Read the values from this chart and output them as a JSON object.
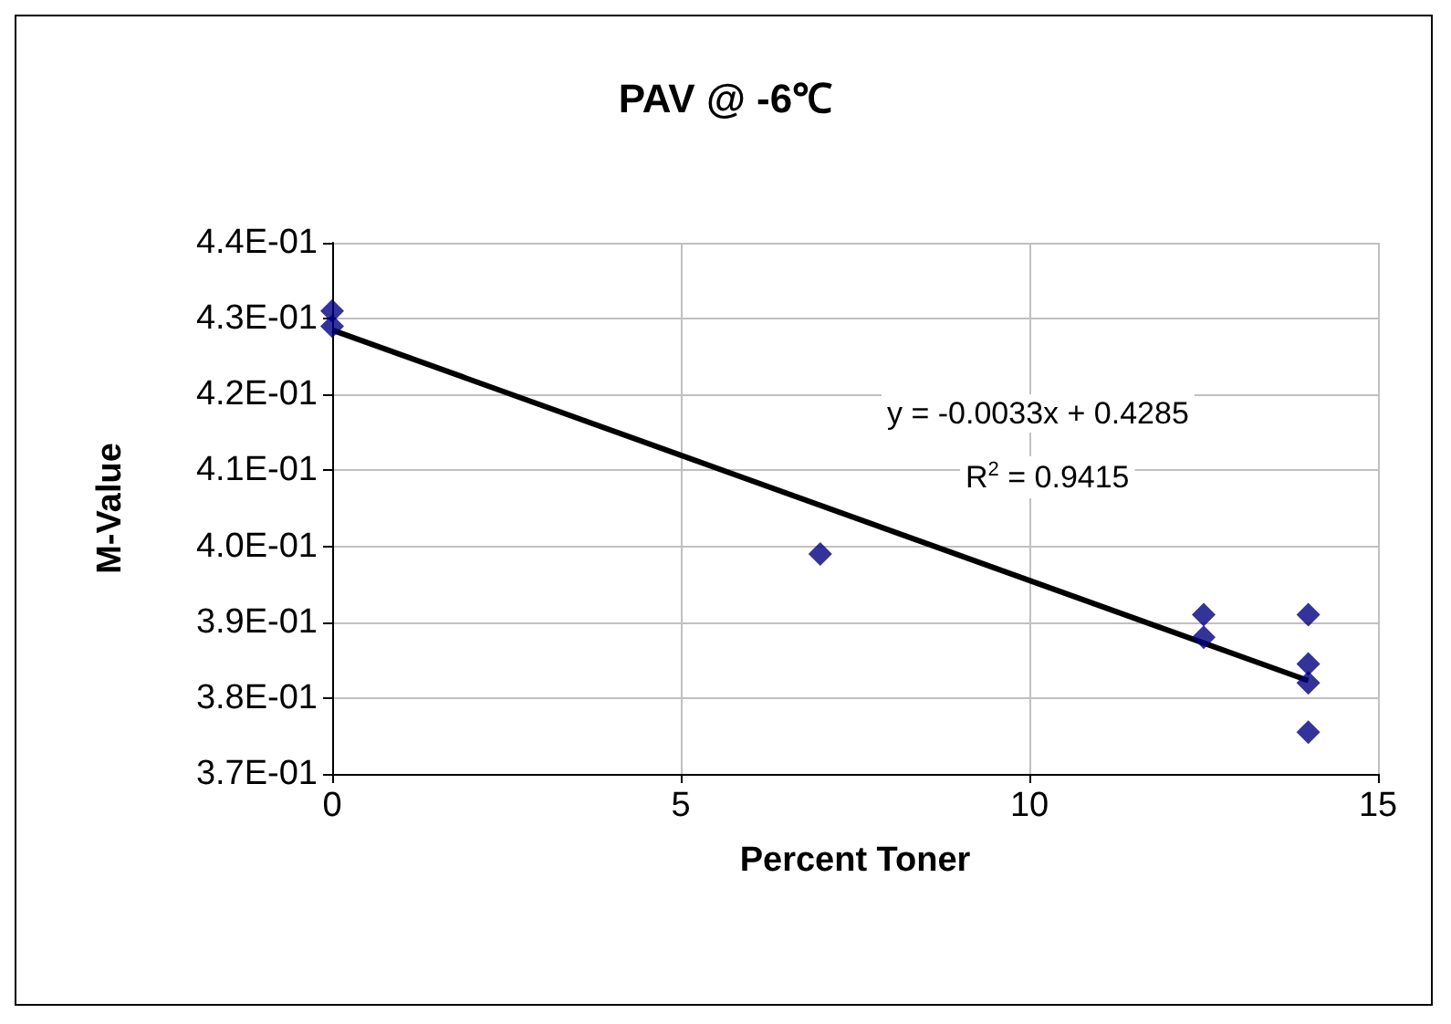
{
  "chart_data": {
    "type": "scatter",
    "title": "PAV @ -6℃",
    "xlabel": "Percent Toner",
    "ylabel": "M-Value",
    "series": [
      {
        "color": "#000080",
        "x": [
          0,
          0,
          7,
          12.5,
          12.5,
          14,
          14,
          14,
          14
        ],
        "values": [
          0.431,
          0.429,
          0.399,
          0.391,
          0.388,
          0.391,
          0.3845,
          0.382,
          0.3755
        ]
      },
      {
        "type": "line",
        "color": "#000000",
        "marker": "none",
        "x": [
          0,
          14
        ],
        "values": [
          0.4285,
          0.3823
        ]
      }
    ],
    "annotations": [
      "y = -0.0033x + 0.4285",
      "R$^{2}$ = 0.9415"
    ],
    "xlim": [
      0,
      15
    ],
    "xticks": [
      0,
      5,
      10,
      15
    ],
    "ylim": [
      0.37,
      0.44
    ],
    "yticks": [
      {
        "value": 0.37,
        "label": "3.7E-01"
      },
      {
        "value": 0.38,
        "label": "3.8E-01"
      },
      {
        "value": 0.39,
        "label": "3.9E-01"
      },
      {
        "value": 0.4,
        "label": "4.0E-01"
      },
      {
        "value": 0.41,
        "label": "4.1E-01"
      },
      {
        "value": 0.42,
        "label": "4.2E-01"
      },
      {
        "value": 0.43,
        "label": "4.3E-01"
      },
      {
        "value": 0.44,
        "label": "4.4E-01"
      }
    ],
    "grid": true,
    "marker": "diamond"
  }
}
